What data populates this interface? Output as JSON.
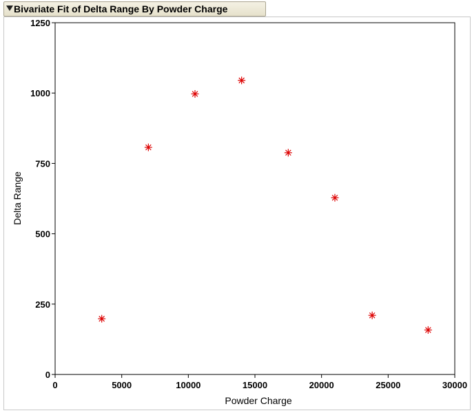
{
  "report": {
    "title": "Bivariate Fit of Delta Range By Powder Charge"
  },
  "chart_data": {
    "type": "scatter",
    "title": "Bivariate Fit of Delta Range By Powder Charge",
    "xlabel": "Powder Charge",
    "ylabel": "Delta Range",
    "xlim": [
      0,
      30000
    ],
    "ylim": [
      0,
      1250
    ],
    "x_ticks": [
      0,
      5000,
      10000,
      15000,
      20000,
      25000,
      30000
    ],
    "y_ticks": [
      0,
      250,
      500,
      750,
      1000,
      1250
    ],
    "x_tick_labels": [
      "0",
      "5000",
      "10000",
      "15000",
      "20000",
      "25000",
      "30000"
    ],
    "y_tick_labels": [
      "0",
      "250",
      "500",
      "750",
      "1000",
      "1250"
    ],
    "marker": "asterisk",
    "marker_color": "#dd0000",
    "grid": false,
    "points": [
      {
        "x": 3500,
        "y": 198
      },
      {
        "x": 7000,
        "y": 807
      },
      {
        "x": 10500,
        "y": 997
      },
      {
        "x": 14000,
        "y": 1045
      },
      {
        "x": 17500,
        "y": 788
      },
      {
        "x": 21000,
        "y": 628
      },
      {
        "x": 23800,
        "y": 210
      },
      {
        "x": 28000,
        "y": 158
      }
    ]
  }
}
